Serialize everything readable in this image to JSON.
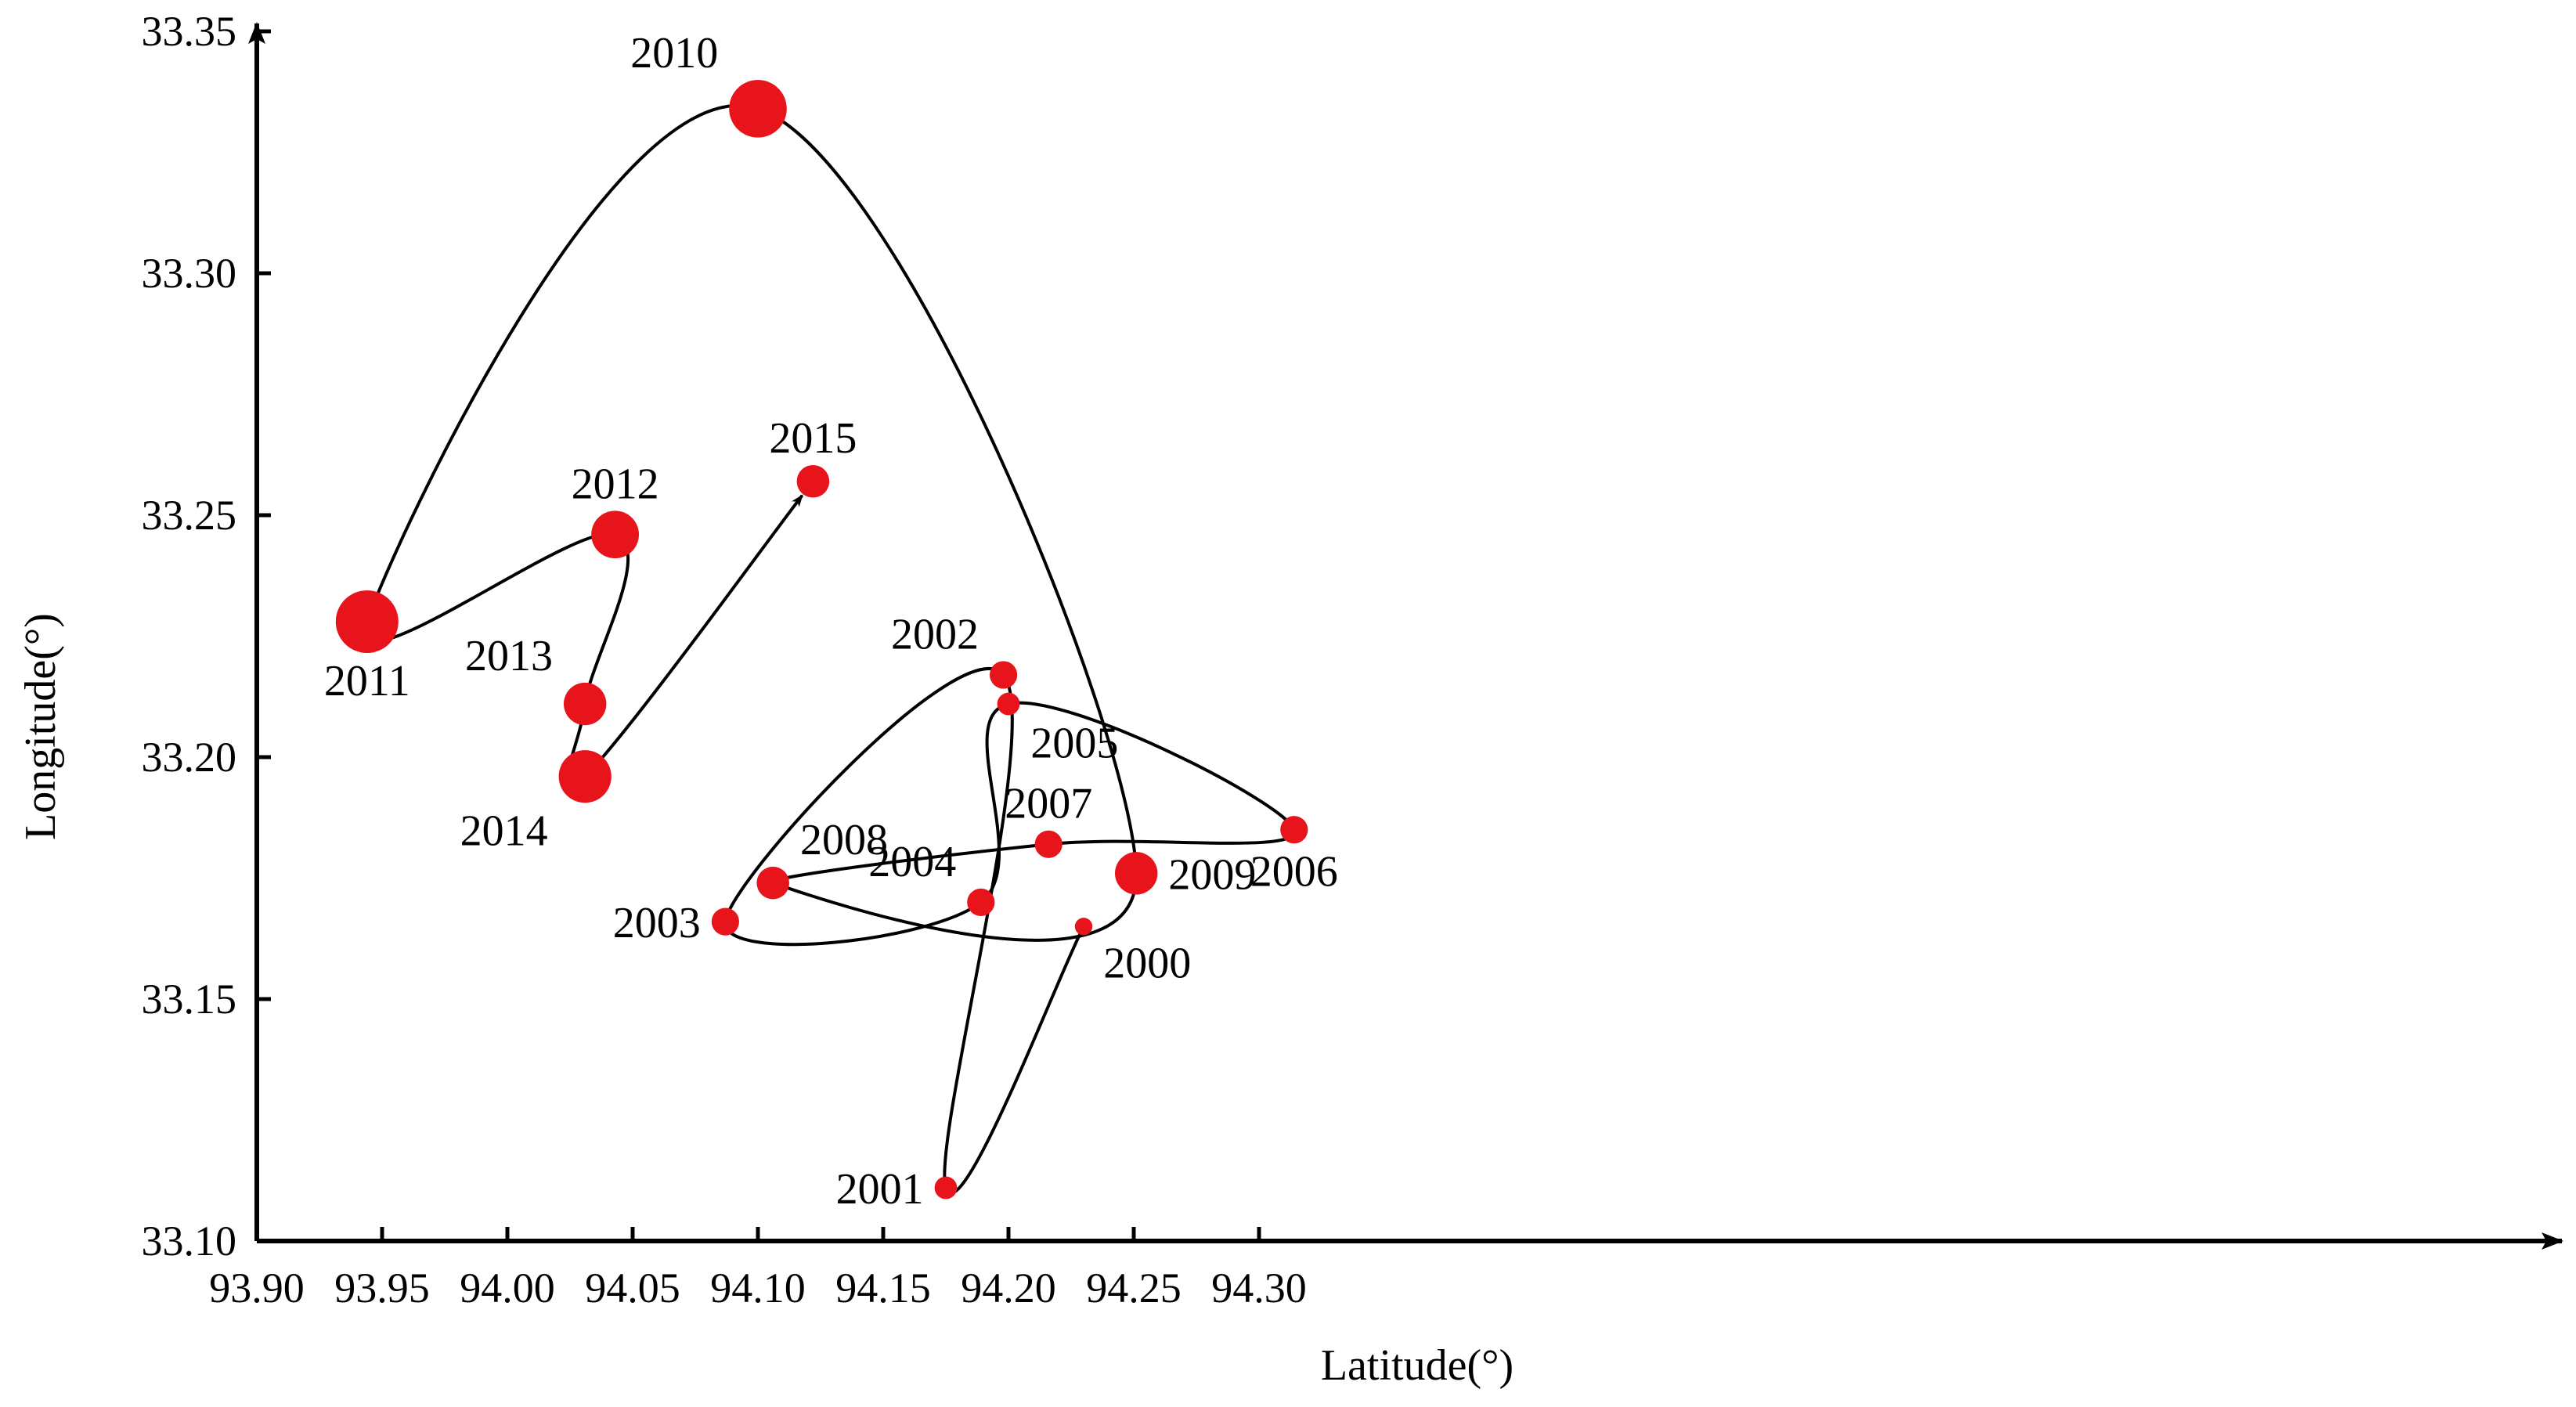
{
  "chart_data": {
    "type": "scatter",
    "title": "",
    "xlabel": "Latitude(°)",
    "ylabel": "Longitude(°)",
    "xlim": [
      93.9,
      94.34
    ],
    "ylim": [
      33.1,
      33.355
    ],
    "x_ticks": [
      {
        "value": 93.9,
        "label": "93.90"
      },
      {
        "value": 93.95,
        "label": "93.95"
      },
      {
        "value": 94.0,
        "label": "94.00"
      },
      {
        "value": 94.05,
        "label": "94.05"
      },
      {
        "value": 94.1,
        "label": "94.10"
      },
      {
        "value": 94.15,
        "label": "94.15"
      },
      {
        "value": 94.2,
        "label": "94.20"
      },
      {
        "value": 94.25,
        "label": "94.25"
      },
      {
        "value": 94.3,
        "label": "94.30"
      }
    ],
    "y_ticks": [
      {
        "value": 33.1,
        "label": "33.10"
      },
      {
        "value": 33.15,
        "label": "33.15"
      },
      {
        "value": 33.2,
        "label": "33.20"
      },
      {
        "value": 33.25,
        "label": "33.25"
      },
      {
        "value": 33.3,
        "label": "33.30"
      },
      {
        "value": 33.35,
        "label": "33.35"
      }
    ],
    "grid": false,
    "legend": "none",
    "marker_color": "#e8141c",
    "line_color": "#000000",
    "series": [
      {
        "points": [
          {
            "year": "2000",
            "x": 94.23,
            "y": 33.165,
            "weight": 1,
            "label_pos": "below-right"
          },
          {
            "year": "2001",
            "x": 94.175,
            "y": 33.111,
            "weight": 2,
            "label_pos": "left"
          },
          {
            "year": "2002",
            "x": 94.198,
            "y": 33.217,
            "weight": 3,
            "label_pos": "above-left"
          },
          {
            "year": "2003",
            "x": 94.087,
            "y": 33.166,
            "weight": 3,
            "label_pos": "left"
          },
          {
            "year": "2004",
            "x": 94.189,
            "y": 33.17,
            "weight": 3,
            "label_pos": "above-left"
          },
          {
            "year": "2005",
            "x": 94.2,
            "y": 33.211,
            "weight": 2,
            "label_pos": "below-right"
          },
          {
            "year": "2006",
            "x": 94.314,
            "y": 33.185,
            "weight": 3,
            "label_pos": "below"
          },
          {
            "year": "2007",
            "x": 94.216,
            "y": 33.182,
            "weight": 3,
            "label_pos": "above"
          },
          {
            "year": "2008",
            "x": 94.106,
            "y": 33.174,
            "weight": 4,
            "label_pos": "above-right"
          },
          {
            "year": "2009",
            "x": 94.251,
            "y": 33.176,
            "weight": 6,
            "label_pos": "right"
          },
          {
            "year": "2010",
            "x": 94.1,
            "y": 33.334,
            "weight": 9,
            "label_pos": "above-left"
          },
          {
            "year": "2011",
            "x": 93.944,
            "y": 33.228,
            "weight": 10,
            "label_pos": "below"
          },
          {
            "year": "2012",
            "x": 94.043,
            "y": 33.246,
            "weight": 7,
            "label_pos": "above"
          },
          {
            "year": "2013",
            "x": 94.031,
            "y": 33.211,
            "weight": 6,
            "label_pos": "above-left"
          },
          {
            "year": "2014",
            "x": 94.031,
            "y": 33.196,
            "weight": 8,
            "label_pos": "below-left"
          },
          {
            "year": "2015",
            "x": 94.122,
            "y": 33.257,
            "weight": 4,
            "label_pos": "above"
          }
        ]
      }
    ]
  }
}
